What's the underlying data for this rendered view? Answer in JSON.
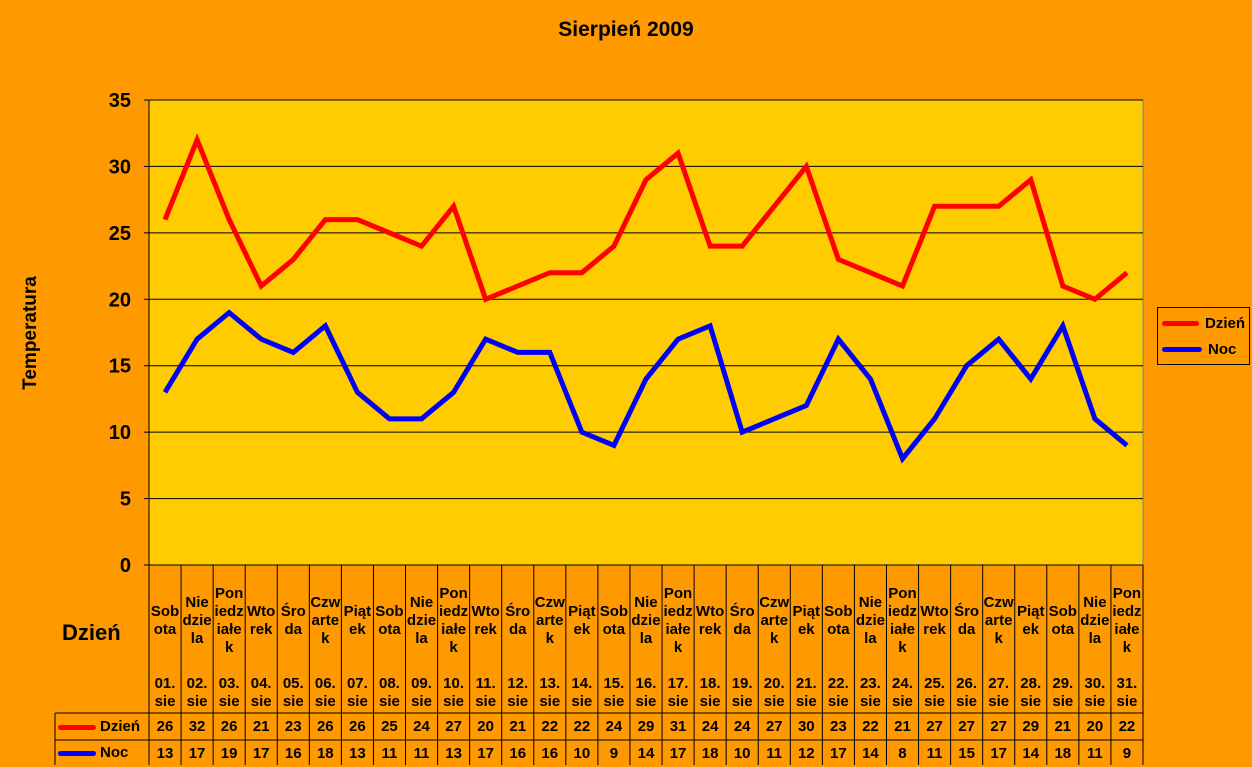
{
  "chart_data": {
    "type": "line",
    "title": "Sierpień 2009",
    "xlabel": "Dzień",
    "ylabel": "Temperatura",
    "ylim": [
      0,
      35
    ],
    "yticks": [
      0,
      5,
      10,
      15,
      20,
      25,
      30,
      35
    ],
    "grid": true,
    "legend_position": "right",
    "categories": [
      {
        "day": "Sobota",
        "date": "01. sie"
      },
      {
        "day": "Niedziela",
        "date": "02. sie"
      },
      {
        "day": "Poniedziałek",
        "date": "03. sie"
      },
      {
        "day": "Wtorek",
        "date": "04. sie"
      },
      {
        "day": "Środa",
        "date": "05. sie"
      },
      {
        "day": "Czwartek",
        "date": "06. sie"
      },
      {
        "day": "Piątek",
        "date": "07. sie"
      },
      {
        "day": "Sobota",
        "date": "08. sie"
      },
      {
        "day": "Niedziela",
        "date": "09. sie"
      },
      {
        "day": "Poniedziałek",
        "date": "10. sie"
      },
      {
        "day": "Wtorek",
        "date": "11. sie"
      },
      {
        "day": "Środa",
        "date": "12. sie"
      },
      {
        "day": "Czwartek",
        "date": "13. sie"
      },
      {
        "day": "Piątek",
        "date": "14. sie"
      },
      {
        "day": "Sobota",
        "date": "15. sie"
      },
      {
        "day": "Niedziela",
        "date": "16. sie"
      },
      {
        "day": "Poniedziałek",
        "date": "17. sie"
      },
      {
        "day": "Wtorek",
        "date": "18. sie"
      },
      {
        "day": "Środa",
        "date": "19. sie"
      },
      {
        "day": "Czwartek",
        "date": "20. sie"
      },
      {
        "day": "Piątek",
        "date": "21. sie"
      },
      {
        "day": "Sobota",
        "date": "22. sie"
      },
      {
        "day": "Niedziela",
        "date": "23. sie"
      },
      {
        "day": "Poniedziałek",
        "date": "24. sie"
      },
      {
        "day": "Wtorek",
        "date": "25. sie"
      },
      {
        "day": "Środa",
        "date": "26. sie"
      },
      {
        "day": "Czwartek",
        "date": "27. sie"
      },
      {
        "day": "Piątek",
        "date": "28. sie"
      },
      {
        "day": "Sobota",
        "date": "29. sie"
      },
      {
        "day": "Niedziela",
        "date": "30. sie"
      },
      {
        "day": "Poniedziałek",
        "date": "31. sie"
      }
    ],
    "series": [
      {
        "name": "Dzień",
        "color": "#FF0000",
        "values": [
          26,
          32,
          26,
          21,
          23,
          26,
          26,
          25,
          24,
          27,
          20,
          21,
          22,
          22,
          24,
          29,
          31,
          24,
          24,
          27,
          30,
          23,
          22,
          21,
          27,
          27,
          27,
          29,
          21,
          20,
          22
        ]
      },
      {
        "name": "Noc",
        "color": "#0000FF",
        "values": [
          13,
          17,
          19,
          17,
          16,
          18,
          13,
          11,
          11,
          13,
          17,
          16,
          16,
          10,
          9,
          14,
          17,
          18,
          10,
          11,
          12,
          17,
          14,
          8,
          11,
          15,
          17,
          14,
          18,
          11,
          9
        ]
      }
    ]
  }
}
